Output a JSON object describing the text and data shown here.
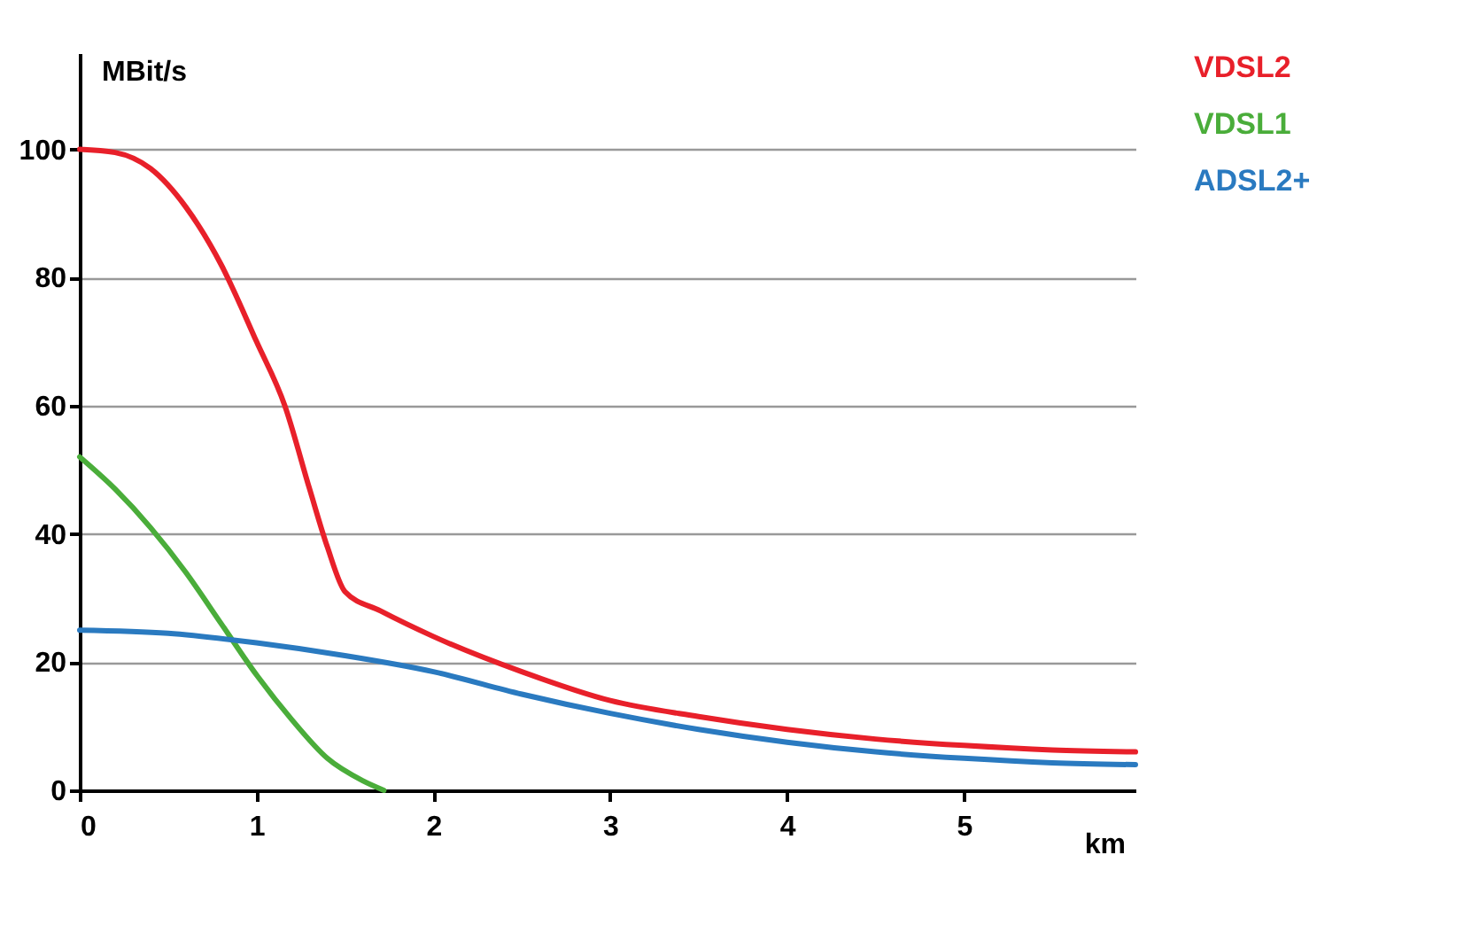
{
  "chart_data": {
    "type": "line",
    "xlabel": "km",
    "ylabel": "MBit/s",
    "xlim": [
      0,
      5.97
    ],
    "xticks": [
      0,
      1,
      2,
      3,
      4,
      5
    ],
    "ylim": [
      0,
      115
    ],
    "yticks": [
      0,
      20,
      40,
      60,
      80,
      100
    ],
    "grid": "y",
    "legend": "top right",
    "marker": "none",
    "line_style": "solid",
    "series": [
      {
        "name": "VDSL2",
        "color": "#e8202a",
        "x": [
          0,
          0.2,
          0.4,
          0.6,
          0.8,
          1.0,
          1.16,
          1.3,
          1.4,
          1.5,
          1.7,
          2,
          2.5,
          3,
          3.5,
          4,
          4.5,
          5,
          5.5,
          5.97
        ],
        "values": [
          100,
          99.5,
          97,
          91,
          82,
          70,
          60,
          47,
          38,
          31,
          28,
          24,
          18.5,
          14,
          11.5,
          9.5,
          8,
          7,
          6.3,
          6
        ]
      },
      {
        "name": "VDSL1",
        "color": "#4aad3a",
        "x": [
          0,
          0.2,
          0.4,
          0.6,
          0.8,
          1.0,
          1.2,
          1.4,
          1.6,
          1.72
        ],
        "values": [
          52,
          47,
          41,
          34,
          26,
          18,
          11,
          5,
          1.5,
          0
        ]
      },
      {
        "name": "ADSL2+",
        "color": "#2a7ac0",
        "x": [
          0,
          0.5,
          1,
          1.5,
          2,
          2.5,
          3,
          3.5,
          4,
          4.5,
          5,
          5.5,
          5.97
        ],
        "values": [
          25,
          24.5,
          23,
          21,
          18.5,
          15,
          12,
          9.5,
          7.5,
          6,
          5,
          4.3,
          4
        ]
      }
    ]
  }
}
